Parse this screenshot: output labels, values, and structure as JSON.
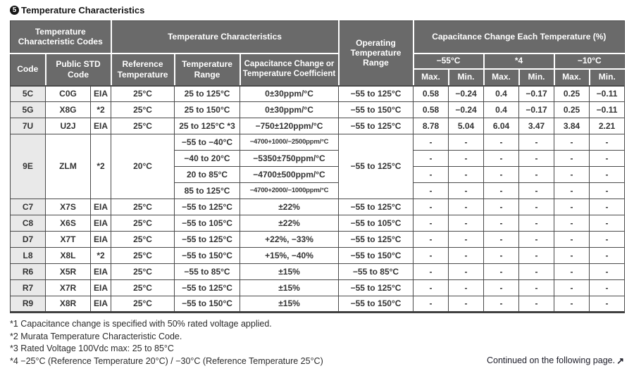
{
  "title": {
    "badge": "5",
    "text": "Temperature Characteristics"
  },
  "colors": {
    "header_bg": "#6a6a6a",
    "header_text": "#ffffff",
    "code_column_bg": "#e9e9e9",
    "grid_border": "#4a4a4a",
    "body_text": "#333333"
  },
  "table": {
    "headers": {
      "temp_char_codes": "Temperature Characteristic Codes",
      "temp_chars": "Temperature Characteristics",
      "op_temp_range": "Operating Temperature Range",
      "cap_change": "Capacitance Change Each Temperature (%)",
      "code": "Code",
      "public_std": "Public STD Code",
      "ref_temp": "Reference Temperature",
      "temp_range": "Temperature Range",
      "cap_or_coef": "Capacitance Change or Temperature Coefficient",
      "t55": "−55°C",
      "t4": "*4",
      "t10": "−10°C",
      "max": "Max.",
      "min": "Min."
    },
    "rows": [
      {
        "code": "5C",
        "std": "C0G",
        "org": "EIA",
        "ref": "25°C",
        "range": "25 to 125°C",
        "coef": "0±30ppm/°C",
        "op": "−55 to 125°C",
        "vals": [
          "0.58",
          "−0.24",
          "0.4",
          "−0.17",
          "0.25",
          "−0.11"
        ]
      },
      {
        "code": "5G",
        "std": "X8G",
        "org": "*2",
        "ref": "25°C",
        "range": "25 to 150°C",
        "coef": "0±30ppm/°C",
        "op": "−55 to 150°C",
        "vals": [
          "0.58",
          "−0.24",
          "0.4",
          "−0.17",
          "0.25",
          "−0.11"
        ]
      },
      {
        "code": "7U",
        "std": "U2J",
        "org": "EIA",
        "ref": "25°C",
        "range": "25 to 125°C *3",
        "coef": "−750±120ppm/°C",
        "op": "−55 to 125°C",
        "vals": [
          "8.78",
          "5.04",
          "6.04",
          "3.47",
          "3.84",
          "2.21"
        ]
      },
      {
        "code": "9E",
        "std": "ZLM",
        "org": "*2",
        "ref": "20°C",
        "op": "−55 to 125°C",
        "sub": [
          {
            "range": "−55 to −40°C",
            "coef": "−4700+1000/−2500ppm/°C",
            "coef_small": true,
            "vals": [
              "-",
              "-",
              "-",
              "-",
              "-",
              "-"
            ]
          },
          {
            "range": "−40 to 20°C",
            "coef": "−5350±750ppm/°C",
            "vals": [
              "-",
              "-",
              "-",
              "-",
              "-",
              "-"
            ]
          },
          {
            "range": "20 to 85°C",
            "coef": "−4700±500ppm/°C",
            "vals": [
              "-",
              "-",
              "-",
              "-",
              "-",
              "-"
            ]
          },
          {
            "range": "85 to 125°C",
            "coef": "−4700+2000/−1000ppm/°C",
            "coef_small": true,
            "vals": [
              "-",
              "-",
              "-",
              "-",
              "-",
              "-"
            ]
          }
        ]
      },
      {
        "code": "C7",
        "std": "X7S",
        "org": "EIA",
        "ref": "25°C",
        "range": "−55 to 125°C",
        "coef": "±22%",
        "op": "−55 to 125°C",
        "vals": [
          "-",
          "-",
          "-",
          "-",
          "-",
          "-"
        ]
      },
      {
        "code": "C8",
        "std": "X6S",
        "org": "EIA",
        "ref": "25°C",
        "range": "−55 to 105°C",
        "coef": "±22%",
        "op": "−55 to 105°C",
        "vals": [
          "-",
          "-",
          "-",
          "-",
          "-",
          "-"
        ]
      },
      {
        "code": "D7",
        "std": "X7T",
        "org": "EIA",
        "ref": "25°C",
        "range": "−55 to 125°C",
        "coef": "+22%, −33%",
        "op": "−55 to 125°C",
        "vals": [
          "-",
          "-",
          "-",
          "-",
          "-",
          "-"
        ]
      },
      {
        "code": "L8",
        "std": "X8L",
        "org": "*2",
        "ref": "25°C",
        "range": "−55 to 150°C",
        "coef": "+15%, −40%",
        "op": "−55 to 150°C",
        "vals": [
          "-",
          "-",
          "-",
          "-",
          "-",
          "-"
        ]
      },
      {
        "code": "R6",
        "std": "X5R",
        "org": "EIA",
        "ref": "25°C",
        "range": "−55 to 85°C",
        "coef": "±15%",
        "op": "−55 to 85°C",
        "vals": [
          "-",
          "-",
          "-",
          "-",
          "-",
          "-"
        ]
      },
      {
        "code": "R7",
        "std": "X7R",
        "org": "EIA",
        "ref": "25°C",
        "range": "−55 to 125°C",
        "coef": "±15%",
        "op": "−55 to 125°C",
        "vals": [
          "-",
          "-",
          "-",
          "-",
          "-",
          "-"
        ]
      },
      {
        "code": "R9",
        "std": "X8R",
        "org": "EIA",
        "ref": "25°C",
        "range": "−55 to 150°C",
        "coef": "±15%",
        "op": "−55 to 150°C",
        "vals": [
          "-",
          "-",
          "-",
          "-",
          "-",
          "-"
        ]
      }
    ]
  },
  "footnotes": [
    "*1 Capacitance change is specified with 50% rated voltage applied.",
    "*2 Murata Temperature Characteristic Code.",
    "*3 Rated Voltage 100Vdc max: 25 to 85°C",
    "*4 −25°C (Reference Temperature 20°C) / −30°C (Reference Temperature 25°C)"
  ],
  "continued": {
    "text": "Continued on the following page.",
    "arrow": "↗"
  }
}
